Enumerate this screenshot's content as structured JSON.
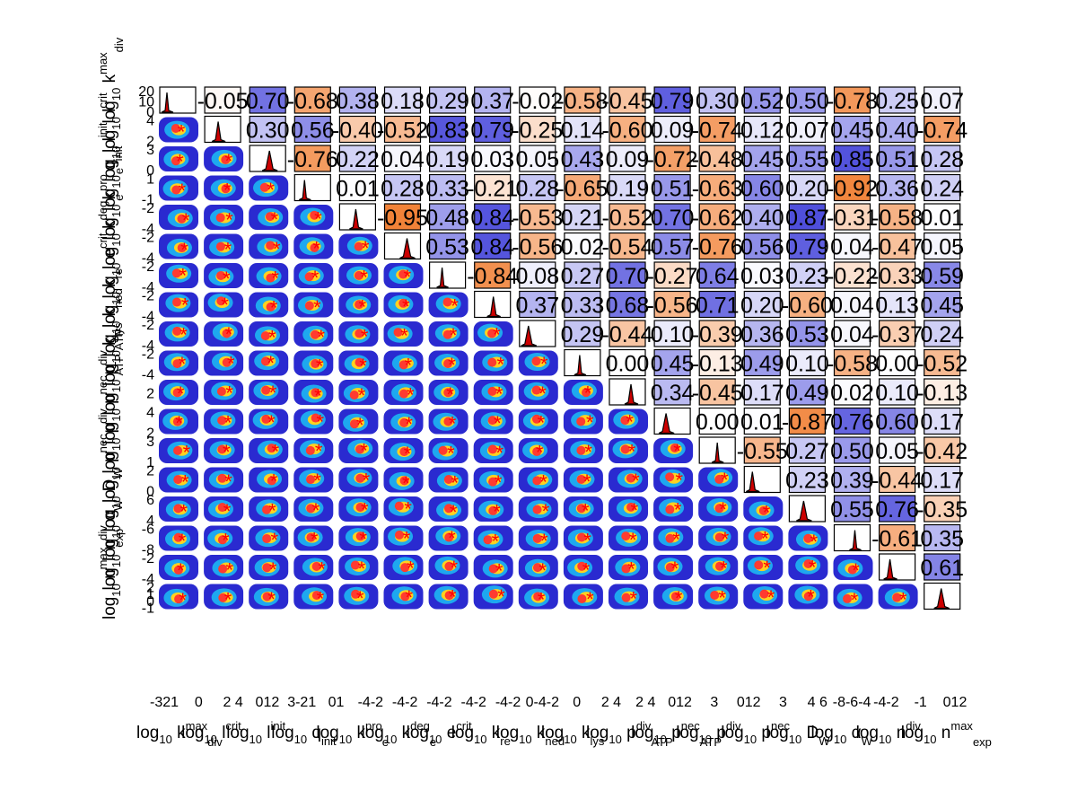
{
  "chart_data": {
    "type": "scatter-matrix",
    "title": "",
    "parameters": [
      {
        "main": "log",
        "sub": "10",
        "name": "k",
        "sup": "max",
        "sub2": "div"
      },
      {
        "main": "log",
        "sub": "10",
        "name": "l",
        "sup": "crit",
        "sub2": ""
      },
      {
        "main": "log",
        "sub": "10",
        "name": "l",
        "sup": "init",
        "sub2": ""
      },
      {
        "main": "log",
        "sub": "10",
        "name": "q",
        "sup": "",
        "sub2": "init"
      },
      {
        "main": "log",
        "sub": "10",
        "name": "k",
        "sup": "pro",
        "sub2": "e"
      },
      {
        "main": "log",
        "sub": "10",
        "name": "k",
        "sup": "deg",
        "sub2": "e"
      },
      {
        "main": "log",
        "sub": "10",
        "name": "e",
        "sup": "crit",
        "sub2": ""
      },
      {
        "main": "log",
        "sub": "10",
        "name": "k",
        "sup": "",
        "sub2": "re"
      },
      {
        "main": "log",
        "sub": "10",
        "name": "k",
        "sup": "",
        "sub2": "ned"
      },
      {
        "main": "log",
        "sub": "10",
        "name": "k",
        "sup": "",
        "sub2": "lys"
      },
      {
        "main": "log",
        "sub": "10",
        "name": "p",
        "sup": "div",
        "sub2": "ATP"
      },
      {
        "main": "log",
        "sub": "10",
        "name": "p",
        "sup": "nec",
        "sub2": "ATP"
      },
      {
        "main": "log",
        "sub": "10",
        "name": "p",
        "sup": "div",
        "sub2": ""
      },
      {
        "main": "log",
        "sub": "10",
        "name": "p",
        "sup": "nec",
        "sub2": ""
      },
      {
        "main": "log",
        "sub": "10",
        "name": "D",
        "sup": "",
        "sub2": "W"
      },
      {
        "main": "log",
        "sub": "10",
        "name": "α",
        "sup": "",
        "sub2": "W"
      },
      {
        "main": "log",
        "sub": "10",
        "name": "n",
        "sup": "div",
        "sub2": ""
      },
      {
        "main": "log",
        "sub": "10",
        "name": "n",
        "sup": "max",
        "sub2": "exp"
      }
    ],
    "x_tick_labels": [
      "-321",
      "0",
      "2 4",
      "012",
      "3-21",
      "01",
      "-4-2",
      "-4-2",
      "-4-2",
      "-4-2",
      "-4-2",
      "0-4-2",
      "0",
      "2 4",
      "2 4",
      "012",
      "3",
      "012",
      "3",
      "4 6",
      "-8-6-4",
      "-4-2",
      "-1",
      "012"
    ],
    "y_tick_labels": [
      [
        "20",
        "10",
        "0"
      ],
      [
        "4",
        "2"
      ],
      [
        "3",
        "0"
      ],
      [
        "1",
        "-1"
      ],
      [
        "-2",
        "-4"
      ],
      [
        "-2",
        "-4"
      ],
      [
        "-2",
        "-4"
      ],
      [
        "-2",
        "-4"
      ],
      [
        "-2",
        "-4"
      ],
      [
        "-2",
        "-4"
      ],
      [
        "2"
      ],
      [
        "4",
        "2"
      ],
      [
        "3",
        "1"
      ],
      [
        "2",
        "0"
      ],
      [
        "6",
        "4"
      ],
      [
        "-6",
        "-8"
      ],
      [
        "-2",
        "-4"
      ],
      [
        "2",
        "1",
        "0",
        "-1"
      ]
    ],
    "correlations": [
      [
        -0.05,
        0.7,
        -0.68,
        0.38,
        0.18,
        0.29,
        0.37,
        -0.02,
        -0.58,
        -0.45,
        0.79,
        0.3,
        0.52,
        0.5,
        -0.78,
        0.25,
        0.07
      ],
      [
        0.3,
        0.56,
        -0.4,
        -0.52,
        0.83,
        0.79,
        -0.25,
        0.14,
        -0.6,
        0.09,
        -0.74,
        0.12,
        0.07,
        0.45,
        0.4,
        -0.74
      ],
      [
        -0.76,
        0.22,
        0.04,
        0.19,
        0.03,
        0.05,
        0.43,
        0.09,
        -0.72,
        -0.48,
        0.45,
        0.55,
        0.85,
        0.51,
        0.28
      ],
      [
        0.01,
        0.28,
        0.33,
        -0.21,
        0.28,
        -0.65,
        0.19,
        0.51,
        -0.63,
        0.6,
        0.2,
        -0.92,
        0.36,
        0.24
      ],
      [
        -0.95,
        0.48,
        0.84,
        -0.53,
        0.21,
        -0.52,
        0.7,
        -0.62,
        0.4,
        0.87,
        -0.31,
        -0.58,
        0.01
      ],
      [
        0.53,
        0.84,
        -0.56,
        0.02,
        -0.54,
        0.57,
        -0.76,
        0.56,
        0.79,
        0.04,
        -0.47,
        0.05
      ],
      [
        -0.84,
        0.08,
        0.27,
        0.7,
        -0.27,
        0.64,
        0.03,
        0.23,
        -0.22,
        -0.33,
        0.59
      ],
      [
        0.37,
        0.33,
        0.68,
        -0.56,
        0.71,
        0.2,
        -0.6,
        0.04,
        0.13,
        0.45
      ],
      [
        0.29,
        -0.44,
        0.1,
        -0.39,
        0.36,
        0.53,
        0.04,
        -0.37,
        0.24
      ],
      [
        0.0,
        0.45,
        -0.13,
        0.49,
        0.1,
        -0.58,
        0.0,
        -0.52
      ],
      [
        0.34,
        -0.45,
        0.17,
        0.49,
        0.02,
        0.1,
        -0.13
      ],
      [
        0.0,
        0.01,
        -0.87,
        0.76,
        0.6,
        0.17
      ],
      [
        -0.55,
        0.27,
        0.5,
        0.05,
        -0.42
      ],
      [
        0.23,
        0.39,
        -0.44,
        0.17
      ],
      [
        0.55,
        0.76,
        -0.35
      ],
      [
        -0.61,
        0.35
      ],
      [
        0.61
      ]
    ],
    "correlation_labels": [
      [
        "-0.05",
        "0.70",
        "-0.68",
        "0.38",
        "0.18",
        "0.29",
        "0.37",
        "-0.02",
        "-0.58",
        "-0.45",
        "0.79",
        "0.30",
        "0.52",
        "0.50",
        "-0.78",
        "0.25",
        "0.07"
      ],
      [
        "0.30",
        "0.56",
        "-0.40",
        "-0.52",
        "0.83",
        "0.79",
        "-0.25",
        "0.14",
        "-0.60",
        "0.09",
        "-0.74",
        "0.12",
        "0.07",
        "0.45",
        "0.40",
        "-0.74"
      ],
      [
        "-0.76",
        "0.22",
        "0.04",
        "0.19",
        "0.03",
        "0.05",
        "0.43",
        "0.09",
        "-0.72",
        "-0.48",
        "0.45",
        "0.55",
        "0.85",
        "0.51",
        "0.28"
      ],
      [
        "0.01",
        "0.28",
        "0.33",
        "-0.21",
        "0.28",
        "-0.65",
        "0.19",
        "0.51",
        "-0.63",
        "0.60",
        "0.20",
        "-0.92",
        "0.36",
        "0.24"
      ],
      [
        "-0.95",
        "0.48",
        "0.84",
        "-0.53",
        "0.21",
        "-0.52",
        "0.70",
        "-0.62",
        "0.40",
        "0.87",
        "-0.31",
        "-0.58",
        "0.01"
      ],
      [
        "0.53",
        "0.84",
        "-0.56",
        "0.02",
        "-0.54",
        "0.57",
        "-0.76",
        "0.56",
        "0.79",
        "0.04",
        "-0.47",
        "0.05"
      ],
      [
        "-0.84",
        "0.08",
        "0.27",
        "0.70",
        "-0.27",
        "0.64",
        "0.03",
        "0.23",
        "-0.22",
        "-0.33",
        "0.59"
      ],
      [
        "0.37",
        "0.33",
        "0.68",
        "-0.56",
        "0.71",
        "0.20",
        "-0.60",
        "0.04",
        "0.13",
        "0.45"
      ],
      [
        "0.29",
        "-0.44",
        "0.10",
        "-0.39",
        "0.36",
        "0.53",
        "0.04",
        "-0.37",
        "0.24"
      ],
      [
        "0.00",
        "0.45",
        "-0.13",
        "0.49",
        "0.10",
        "-0.58",
        "0.00",
        "-0.52"
      ],
      [
        "0.34",
        "-0.45",
        "0.17",
        "0.49",
        "0.02",
        "0.10",
        "-0.13"
      ],
      [
        "0.00",
        "0.01",
        "-0.87",
        "0.76",
        "0.60",
        "0.17"
      ],
      [
        "-0.55",
        "0.27",
        "0.50",
        "0.05",
        "-0.42"
      ],
      [
        "0.23",
        "0.39",
        "-0.44",
        "0.17"
      ],
      [
        "0.55",
        "0.76",
        "-0.35"
      ],
      [
        "-0.61",
        "0.35"
      ],
      [
        "0.61"
      ]
    ],
    "colors": {
      "positive": "#3535d6",
      "negative": "#f07b2d",
      "neutral": "#ffffff",
      "density_outer": "#2a2ad0",
      "density_mid": "#1ea8ef",
      "density_inner": "#ffd21f",
      "density_core": "#ff3b30",
      "best_fit_marker": "#ff0000",
      "histogram_line": "#000000",
      "histogram_fill": "#cc0000"
    },
    "legend": "none",
    "grid": false
  }
}
